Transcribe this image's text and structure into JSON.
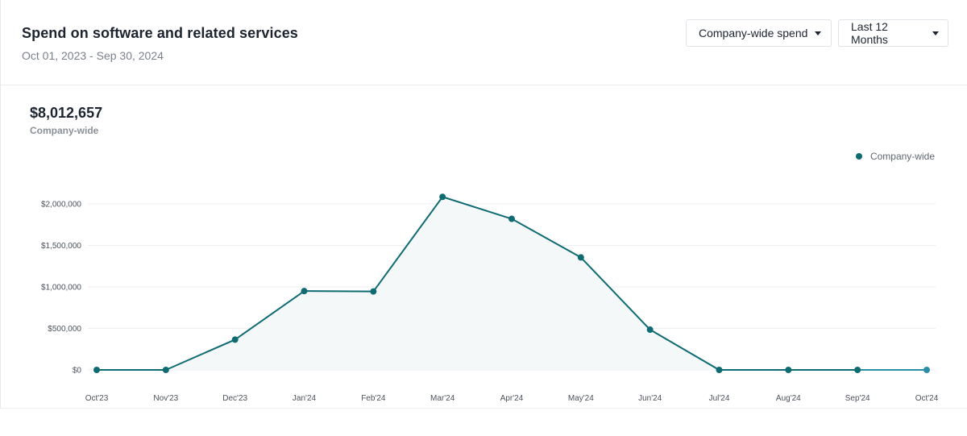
{
  "header": {
    "title": "Spend on software and related services",
    "date_range": "Oct 01, 2023 - Sep 30, 2024",
    "scope_dropdown": "Company-wide spend",
    "period_dropdown": "Last 12 Months"
  },
  "summary": {
    "total": "$8,012,657",
    "label": "Company-wide"
  },
  "colors": {
    "series": "#0e6b72",
    "series_last": "#2a8ea6",
    "fill": "#f4f8f9",
    "grid": "#eceef0"
  },
  "chart_data": {
    "type": "line",
    "categories": [
      "Oct'23",
      "Nov'23",
      "Dec'23",
      "Jan'24",
      "Feb'24",
      "Mar'24",
      "Apr'24",
      "May'24",
      "Jun'24",
      "Jul'24",
      "Aug'24",
      "Sep'24",
      "Oct'24"
    ],
    "series": [
      {
        "name": "Company-wide",
        "values": [
          0,
          0,
          365000,
          950000,
          945000,
          2085000,
          1820000,
          1355000,
          485000,
          0,
          0,
          0,
          0
        ]
      }
    ],
    "y_ticks": [
      {
        "value": 0,
        "label": "$0"
      },
      {
        "value": 500000,
        "label": "$500,000"
      },
      {
        "value": 1000000,
        "label": "$1,000,000"
      },
      {
        "value": 1500000,
        "label": "$1,500,000"
      },
      {
        "value": 2000000,
        "label": "$2,000,000"
      }
    ],
    "ylim": [
      0,
      2000000
    ],
    "grid": true,
    "legend_position": "top-right"
  }
}
